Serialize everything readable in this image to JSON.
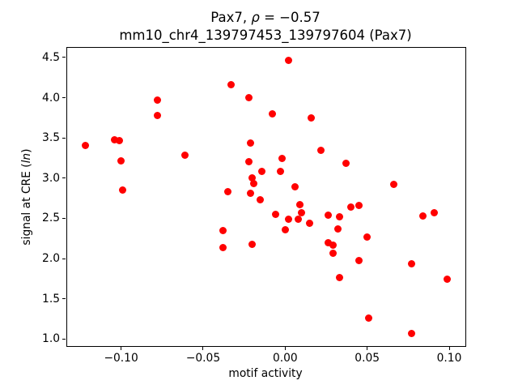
{
  "title": {
    "line1_prefix": "Pax7, ",
    "line1_rho": "ρ",
    "line1_suffix": " = −0.57",
    "line2": "mm10_chr4_139797453_139797604 (Pax7)"
  },
  "chart_data": {
    "type": "scatter",
    "title": "Pax7, ρ = −0.57",
    "subtitle": "mm10_chr4_139797453_139797604 (Pax7)",
    "xlabel": "motif activity",
    "ylabel": "signal at CRE (ln)",
    "ylabel_parts": {
      "prefix": "signal at CRE (",
      "italic": "ln",
      "suffix": ")"
    },
    "marker_color": "#ff0000",
    "grid": false,
    "legend": null,
    "xlim": [
      -0.1336,
      0.1103
    ],
    "ylim": [
      0.905,
      4.629
    ],
    "x_ticks": [
      -0.1,
      -0.05,
      0.0,
      0.05,
      0.1
    ],
    "x_tick_labels": [
      "−0.10",
      "−0.05",
      "0.00",
      "0.05",
      "0.10"
    ],
    "y_ticks": [
      1.0,
      1.5,
      2.0,
      2.5,
      3.0,
      3.5,
      4.0,
      4.5
    ],
    "y_tick_labels": [
      "1.0",
      "1.5",
      "2.0",
      "2.5",
      "3.0",
      "3.5",
      "4.0",
      "4.5"
    ],
    "points": [
      [
        -0.122,
        3.41
      ],
      [
        -0.104,
        3.48
      ],
      [
        -0.101,
        3.47
      ],
      [
        -0.1,
        3.22
      ],
      [
        -0.099,
        2.85
      ],
      [
        -0.078,
        3.97
      ],
      [
        -0.078,
        3.78
      ],
      [
        -0.061,
        3.29
      ],
      [
        -0.038,
        2.35
      ],
      [
        -0.038,
        2.14
      ],
      [
        -0.035,
        2.83
      ],
      [
        -0.033,
        4.16
      ],
      [
        -0.022,
        4.0
      ],
      [
        -0.021,
        3.44
      ],
      [
        -0.022,
        3.2
      ],
      [
        -0.02,
        3.0
      ],
      [
        -0.019,
        2.93
      ],
      [
        -0.021,
        2.81
      ],
      [
        -0.02,
        2.18
      ],
      [
        -0.014,
        3.08
      ],
      [
        -0.015,
        2.73
      ],
      [
        -0.008,
        3.8
      ],
      [
        -0.006,
        2.55
      ],
      [
        -0.003,
        3.08
      ],
      [
        -0.002,
        3.25
      ],
      [
        0.0,
        2.36
      ],
      [
        0.002,
        4.46
      ],
      [
        0.002,
        2.49
      ],
      [
        0.006,
        2.89
      ],
      [
        0.008,
        2.49
      ],
      [
        0.009,
        2.67
      ],
      [
        0.01,
        2.57
      ],
      [
        0.015,
        2.44
      ],
      [
        0.016,
        3.75
      ],
      [
        0.022,
        3.35
      ],
      [
        0.026,
        2.54
      ],
      [
        0.026,
        2.2
      ],
      [
        0.029,
        2.17
      ],
      [
        0.029,
        2.07
      ],
      [
        0.032,
        2.37
      ],
      [
        0.033,
        2.52
      ],
      [
        0.033,
        1.76
      ],
      [
        0.037,
        3.18
      ],
      [
        0.04,
        2.64
      ],
      [
        0.045,
        2.66
      ],
      [
        0.045,
        1.98
      ],
      [
        0.05,
        2.27
      ],
      [
        0.051,
        1.26
      ],
      [
        0.066,
        2.92
      ],
      [
        0.077,
        1.93
      ],
      [
        0.077,
        1.07
      ],
      [
        0.084,
        2.53
      ],
      [
        0.091,
        2.57
      ],
      [
        0.099,
        1.74
      ]
    ]
  }
}
